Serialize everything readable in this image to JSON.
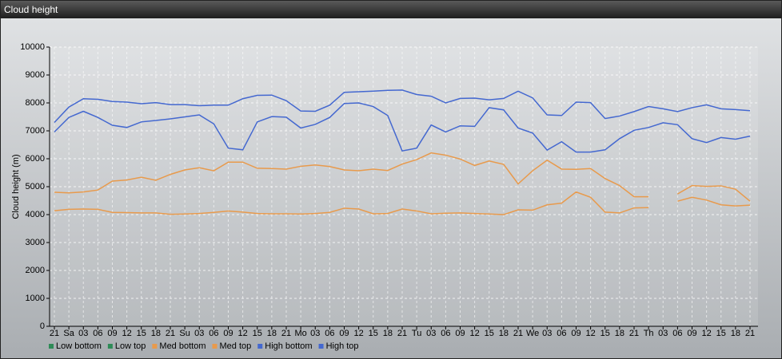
{
  "chart_data": {
    "type": "line",
    "title": "Cloud height",
    "ylabel": "Cloud height (m)",
    "categories": [
      "21",
      "Sa",
      "03",
      "06",
      "09",
      "12",
      "15",
      "18",
      "21",
      "Su",
      "03",
      "06",
      "09",
      "12",
      "15",
      "18",
      "21",
      "Mo",
      "03",
      "06",
      "09",
      "12",
      "15",
      "18",
      "21",
      "Tu",
      "03",
      "06",
      "09",
      "12",
      "15",
      "18",
      "21",
      "We",
      "03",
      "06",
      "09",
      "12",
      "15",
      "18",
      "21",
      "Th",
      "03",
      "06",
      "09",
      "12",
      "15",
      "18",
      "21"
    ],
    "ylim": [
      0,
      10000
    ],
    "yticks": [
      0,
      1000,
      2000,
      3000,
      4000,
      5000,
      6000,
      7000,
      8000,
      9000,
      10000
    ],
    "grid": true,
    "legend": "bottom",
    "series": [
      {
        "name": "Low bottom",
        "color": "#2e8b57",
        "values": [
          null,
          null,
          null,
          null,
          null,
          null,
          null,
          null,
          null,
          null,
          null,
          null,
          null,
          null,
          null,
          null,
          null,
          null,
          null,
          null,
          null,
          null,
          null,
          null,
          null,
          null,
          null,
          null,
          null,
          null,
          null,
          null,
          null,
          null,
          null,
          null,
          null,
          null,
          null,
          null,
          null,
          null,
          null,
          null,
          null,
          null,
          null,
          null,
          null
        ]
      },
      {
        "name": "Low top",
        "color": "#2e8b57",
        "values": [
          null,
          null,
          null,
          null,
          null,
          null,
          null,
          null,
          null,
          null,
          null,
          null,
          null,
          null,
          null,
          null,
          null,
          null,
          null,
          null,
          null,
          null,
          null,
          null,
          null,
          null,
          null,
          null,
          null,
          null,
          null,
          null,
          null,
          null,
          null,
          null,
          null,
          null,
          null,
          null,
          null,
          null,
          null,
          null,
          null,
          null,
          null,
          null,
          null
        ]
      },
      {
        "name": "Med bottom",
        "color": "#e89a4c",
        "values": [
          4140,
          4190,
          4200,
          4190,
          4080,
          4070,
          4060,
          4060,
          4010,
          4020,
          4040,
          4080,
          4130,
          4090,
          4040,
          4030,
          4030,
          4020,
          4040,
          4080,
          4230,
          4200,
          4030,
          4040,
          4200,
          4130,
          4030,
          4050,
          4060,
          4040,
          4020,
          4000,
          4170,
          4160,
          4350,
          4410,
          4810,
          4620,
          4090,
          4060,
          4240,
          4250,
          null,
          4480,
          4620,
          4520,
          4350,
          4310,
          4340
        ]
      },
      {
        "name": "Med top",
        "color": "#e89a4c",
        "values": [
          4800,
          4780,
          4810,
          4880,
          5200,
          5240,
          5340,
          5230,
          5440,
          5600,
          5680,
          5570,
          5880,
          5880,
          5660,
          5650,
          5630,
          5730,
          5780,
          5720,
          5600,
          5570,
          5630,
          5580,
          5810,
          5970,
          6210,
          6130,
          5990,
          5760,
          5920,
          5800,
          5100,
          5570,
          5950,
          5630,
          5620,
          5650,
          5290,
          5040,
          4640,
          4640,
          null,
          4740,
          5040,
          5010,
          5030,
          4910,
          4480
        ]
      },
      {
        "name": "High bottom",
        "color": "#4468d0",
        "values": [
          6960,
          7480,
          7700,
          7480,
          7200,
          7120,
          7320,
          7370,
          7430,
          7500,
          7570,
          7250,
          6380,
          6320,
          7320,
          7510,
          7490,
          7100,
          7230,
          7480,
          7980,
          8000,
          7870,
          7550,
          6280,
          6380,
          7210,
          6960,
          7180,
          7160,
          7830,
          7750,
          7100,
          6920,
          6310,
          6610,
          6240,
          6240,
          6320,
          6720,
          7020,
          7120,
          7290,
          7220,
          6720,
          6580,
          6760,
          6700,
          6810
        ]
      },
      {
        "name": "High top",
        "color": "#4468d0",
        "values": [
          7300,
          7850,
          8150,
          8130,
          8050,
          8030,
          7970,
          8010,
          7940,
          7940,
          7900,
          7920,
          7920,
          8150,
          8270,
          8280,
          8080,
          7710,
          7700,
          7920,
          8380,
          8400,
          8420,
          8450,
          8460,
          8300,
          8240,
          8000,
          8160,
          8170,
          8110,
          8160,
          8420,
          8180,
          7570,
          7550,
          8030,
          8010,
          7440,
          7530,
          7690,
          7870,
          7790,
          7690,
          7830,
          7930,
          7790,
          7760,
          7720
        ]
      }
    ]
  }
}
